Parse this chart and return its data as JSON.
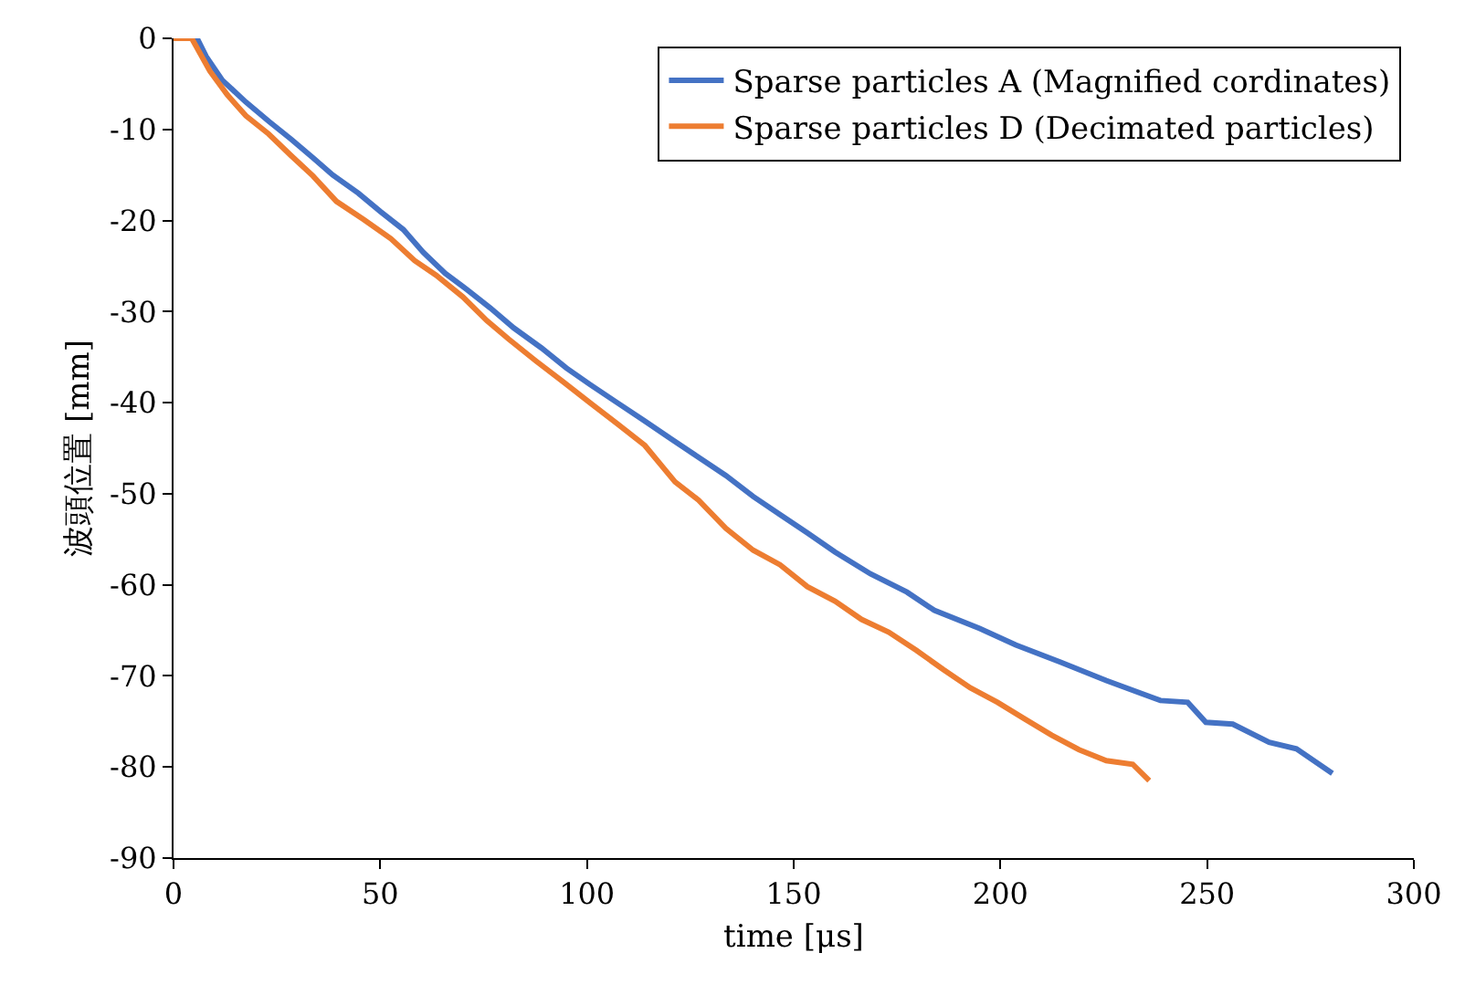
{
  "chart_data": {
    "type": "line",
    "xlabel": "time [μs]",
    "ylabel": "波頭位置 [mm]",
    "xlim": [
      0,
      300
    ],
    "xticks": [
      0,
      50,
      100,
      150,
      200,
      250,
      300
    ],
    "ylim": [
      -90,
      0
    ],
    "yticks": [
      -90,
      -80,
      -70,
      -60,
      -50,
      -40,
      -30,
      -20,
      -10,
      0
    ],
    "legend": "top right",
    "marker": "none",
    "line_style": "solid",
    "series": [
      {
        "name": "Sparse particles A (Magnified cordinates)",
        "color": "#4472c4",
        "x": [
          0,
          5.7,
          7.9,
          11.8,
          17.5,
          23,
          28.5,
          33.7,
          38.5,
          44.7,
          50,
          55.6,
          60.4,
          65.7,
          71,
          76.6,
          82.3,
          89,
          95,
          100.7,
          107.3,
          113.9,
          120.4,
          127,
          133.6,
          140.2,
          146.7,
          153.3,
          160,
          168.6,
          177.4,
          184,
          195,
          203.7,
          214.6,
          225.6,
          238.7,
          245.3,
          249.7,
          256.2,
          265,
          271.6,
          280.3
        ],
        "values": [
          0,
          0,
          -2,
          -4.6,
          -7,
          -9.1,
          -11.1,
          -13.1,
          -15,
          -17,
          -19,
          -21,
          -23.5,
          -25.8,
          -27.6,
          -29.6,
          -31.8,
          -34,
          -36.2,
          -38,
          -40,
          -42,
          -44,
          -46,
          -48,
          -50.3,
          -52.3,
          -54.3,
          -56.4,
          -58.8,
          -60.8,
          -62.8,
          -64.8,
          -66.6,
          -68.5,
          -70.5,
          -72.7,
          -72.9,
          -75.1,
          -75.3,
          -77.3,
          -78,
          -80.7
        ]
      },
      {
        "name": "Sparse particles D (Decimated particles)",
        "color": "#ed7d31",
        "x": [
          0,
          4.4,
          8.8,
          13,
          17.5,
          23,
          28.5,
          33.7,
          39.4,
          46,
          52.6,
          58.3,
          63.5,
          70,
          75.8,
          81,
          87.6,
          94.2,
          100.7,
          107.3,
          114,
          121.3,
          127,
          133.6,
          140.2,
          146.7,
          153.3,
          160,
          166.4,
          173,
          179.7,
          186.2,
          192.7,
          199.3,
          205.8,
          212.4,
          219,
          225.6,
          232,
          236
        ],
        "values": [
          0,
          0,
          -3.6,
          -6.2,
          -8.5,
          -10.5,
          -12.9,
          -15.1,
          -17.9,
          -19.9,
          -22,
          -24.4,
          -26,
          -28.4,
          -31,
          -33,
          -35.4,
          -37.7,
          -40,
          -42.3,
          -44.7,
          -48.7,
          -50.7,
          -53.8,
          -56.2,
          -57.8,
          -60.2,
          -61.8,
          -63.8,
          -65.2,
          -67.2,
          -69.3,
          -71.3,
          -72.9,
          -74.7,
          -76.5,
          -78.1,
          -79.3,
          -79.7,
          -81.5
        ]
      }
    ]
  }
}
